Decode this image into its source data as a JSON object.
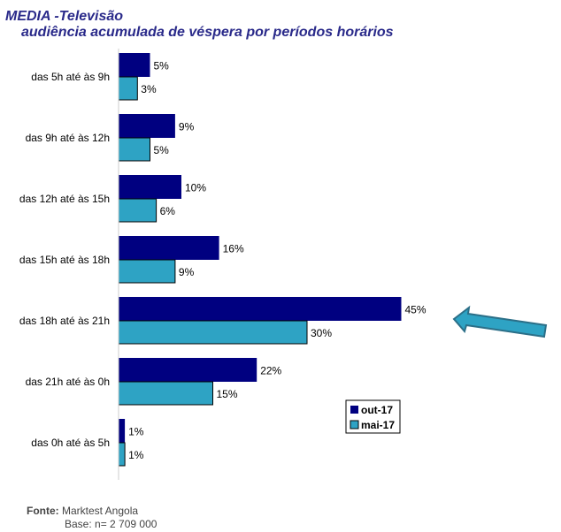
{
  "title": "MEDIA -Televisão",
  "subtitle": "audiência acumulada de véspera por períodos horários",
  "footer": {
    "source_label": "Fonte:",
    "source": "Marktest Angola",
    "base": "Base: n= 2 709 000"
  },
  "colors": {
    "out-17": "#000080",
    "mai-17": "#2ea3c4",
    "title": "#2a2a8a",
    "arrow": "#2b7f9a"
  },
  "annotation": {
    "icon": "arrow-left-icon",
    "points_to": "das 18h até às 21h"
  },
  "chart_data": {
    "type": "bar",
    "orientation": "horizontal",
    "categories": [
      "das 5h até às 9h",
      "das 9h até às 12h",
      "das 12h até às 15h",
      "das 15h até às 18h",
      "das 18h até às 21h",
      "das 21h até às 0h",
      "das 0h até às 5h"
    ],
    "series": [
      {
        "name": "out-17",
        "values": [
          5,
          9,
          10,
          16,
          45,
          22,
          1
        ],
        "labels": [
          "5%",
          "9%",
          "10%",
          "16%",
          "45%",
          "22%",
          "1%"
        ]
      },
      {
        "name": "mai-17",
        "values": [
          3,
          5,
          6,
          9,
          30,
          15,
          1
        ],
        "labels": [
          "3%",
          "5%",
          "6%",
          "9%",
          "30%",
          "15%",
          "1%"
        ]
      }
    ],
    "unit": "%",
    "legend": "bottom-right",
    "grid": false
  }
}
